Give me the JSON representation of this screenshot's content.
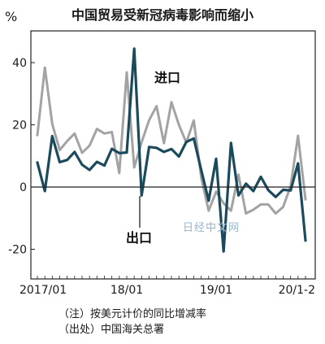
{
  "chart_data": {
    "type": "line",
    "title": "中国贸易受新冠病毒影响而缩小",
    "ylabel": "%",
    "ylim": [
      -25,
      50
    ],
    "yticks": [
      40,
      20,
      0,
      -20
    ],
    "ytick_labels": [
      "40",
      "20",
      "0",
      "-20"
    ],
    "x_tick_labels": [
      "2017/01",
      "18/01",
      "19/01",
      "20/1-2"
    ],
    "x": [
      "2017/01",
      "2017/02",
      "2017/03",
      "2017/04",
      "2017/05",
      "2017/06",
      "2017/07",
      "2017/08",
      "2017/09",
      "2017/10",
      "2017/11",
      "2017/12",
      "2018/01",
      "2018/02",
      "2018/03",
      "2018/04",
      "2018/05",
      "2018/06",
      "2018/07",
      "2018/08",
      "2018/09",
      "2018/10",
      "2018/11",
      "2018/12",
      "2019/01",
      "2019/02",
      "2019/03",
      "2019/04",
      "2019/05",
      "2019/06",
      "2019/07",
      "2019/08",
      "2019/09",
      "2019/10",
      "2019/11",
      "2019/12",
      "2020/1-2"
    ],
    "series": [
      {
        "name": "进口",
        "color": "#a3a3a3",
        "values": [
          16.7,
          38.4,
          20.3,
          11.9,
          14.8,
          17.2,
          11.0,
          13.3,
          18.7,
          17.2,
          17.7,
          4.5,
          36.9,
          6.3,
          14.4,
          21.5,
          26.0,
          14.1,
          27.3,
          20.0,
          14.3,
          21.4,
          3.0,
          -7.6,
          -1.5,
          -5.2,
          -7.6,
          4.0,
          -8.5,
          -7.3,
          -5.6,
          -5.6,
          -8.5,
          -6.4,
          0.3,
          16.5,
          -4.0
        ]
      },
      {
        "name": "出口",
        "color": "#1b4a5c",
        "values": [
          7.9,
          -1.3,
          16.4,
          8.0,
          8.7,
          11.3,
          7.2,
          5.5,
          8.1,
          6.9,
          12.3,
          10.9,
          11.1,
          44.5,
          -2.7,
          12.9,
          12.6,
          11.3,
          12.2,
          9.8,
          14.5,
          15.6,
          5.4,
          -4.4,
          9.1,
          -20.7,
          14.2,
          -2.7,
          1.1,
          -1.3,
          3.3,
          -1.0,
          -3.2,
          -0.9,
          -1.1,
          7.6,
          -17.2
        ]
      }
    ],
    "annotations": [
      "进口",
      "出口"
    ],
    "grid": false,
    "legend": "none"
  },
  "watermark": "日经中文网",
  "notes": [
    "（注）按美元计价的同比增减率",
    "（出处）中国海关总署"
  ]
}
